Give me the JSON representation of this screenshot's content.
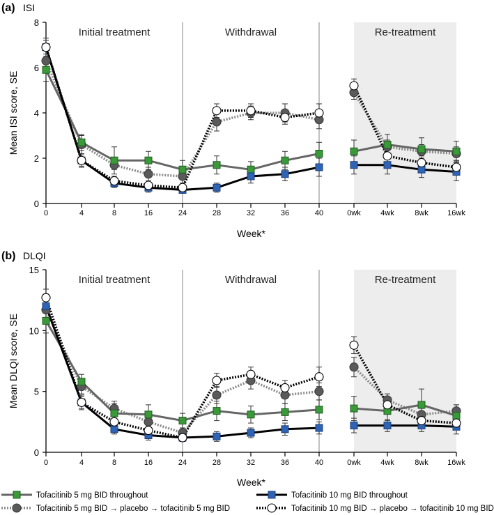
{
  "legend": [
    {
      "label": "Tofacitinib 5 mg BID throughout",
      "style": "s5"
    },
    {
      "label": "Tofacitinib 5 mg BID → placebo → tofacitinib 5 mg BID",
      "style": "p5"
    },
    {
      "label": "Tofacitinib 10 mg BID throughout",
      "style": "s10"
    },
    {
      "label": "Tofacitinib 10 mg BID → placebo → tofacitinib 10 mg BID",
      "style": "p10"
    }
  ],
  "colors": {
    "s5": "#3a9a3a",
    "s5_line": "#666666",
    "p5": "#5a5a5a",
    "p5_line": "#8a8a8a",
    "s10": "#2f63b5",
    "s10_line": "#000000",
    "p10_fill": "#ffffff",
    "p10_line": "#000000",
    "shade": "#ededed",
    "divider": "#9a9a9a",
    "errbar": "#333333"
  },
  "chart_data": [
    {
      "type": "line",
      "panel": "(a)",
      "title": "ISI",
      "ylabel": "Mean ISI score, SE",
      "xlabel": "Week*",
      "ylim": [
        0,
        8
      ],
      "yticks": [
        0,
        2,
        4,
        6,
        8
      ],
      "phases": [
        "Initial treatment",
        "Withdrawal",
        "Re-treatment"
      ],
      "xtick_labels": [
        "0",
        "4",
        "8",
        "16",
        "24",
        "28",
        "32",
        "36",
        "40",
        "0wk",
        "4wk",
        "8wk",
        "16wk"
      ],
      "series": [
        {
          "name": "Tofacitinib 5 mg BID throughout",
          "style": "s5",
          "values": [
            5.9,
            2.7,
            1.9,
            1.9,
            1.5,
            1.7,
            1.5,
            1.9,
            2.2,
            2.3,
            2.6,
            2.4,
            2.3
          ],
          "se": [
            0.5,
            0.35,
            0.6,
            0.4,
            0.4,
            0.4,
            0.35,
            0.4,
            0.5,
            0.5,
            0.45,
            0.5,
            0.45
          ]
        },
        {
          "name": "Tofacitinib 5 mg BID → placebo → tofacitinib 5 mg BID",
          "style": "p5",
          "values": [
            6.3,
            2.6,
            1.7,
            1.3,
            1.2,
            3.6,
            4.0,
            4.0,
            3.7,
            4.9,
            2.5,
            2.3,
            2.2
          ],
          "se": [
            0.5,
            0.4,
            0.2,
            0.3,
            0.3,
            0.4,
            0.3,
            0.4,
            0.4,
            0.3,
            0.3,
            0.3,
            0.3
          ]
        },
        {
          "name": "Tofacitinib 10 mg BID throughout",
          "style": "s10",
          "values": [
            6.9,
            1.9,
            0.9,
            0.7,
            0.6,
            0.7,
            1.2,
            1.3,
            1.6,
            1.7,
            1.7,
            1.5,
            1.4
          ],
          "se": [
            0.4,
            0.25,
            0.2,
            0.2,
            0.15,
            0.2,
            0.3,
            0.3,
            0.4,
            0.4,
            0.4,
            0.35,
            0.4
          ]
        },
        {
          "name": "Tofacitinib 10 mg BID → placebo → tofacitinib 10 mg BID",
          "style": "p10",
          "values": [
            6.9,
            1.9,
            1.0,
            0.8,
            0.7,
            4.1,
            4.1,
            3.8,
            4.0,
            5.2,
            2.1,
            1.8,
            1.6
          ],
          "se": [
            0.3,
            0.3,
            0.2,
            0.2,
            0.2,
            0.3,
            0.3,
            0.3,
            0.4,
            0.3,
            0.3,
            0.3,
            0.3
          ]
        }
      ]
    },
    {
      "type": "line",
      "panel": "(b)",
      "title": "DLQI",
      "ylabel": "Mean DLQI score, SE",
      "xlabel": "Week*",
      "ylim": [
        0,
        15
      ],
      "yticks": [
        0,
        5,
        10,
        15
      ],
      "phases": [
        "Initial treatment",
        "Withdrawal",
        "Re-treatment"
      ],
      "xtick_labels": [
        "0",
        "4",
        "8",
        "16",
        "24",
        "28",
        "32",
        "36",
        "40",
        "0wk",
        "4wk",
        "8wk",
        "16wk"
      ],
      "series": [
        {
          "name": "Tofacitinib 5 mg BID throughout",
          "style": "s5",
          "values": [
            10.8,
            5.8,
            3.2,
            3.1,
            2.6,
            3.4,
            3.1,
            3.3,
            3.5,
            3.6,
            3.4,
            3.9,
            3.0
          ],
          "se": [
            1.0,
            0.6,
            0.8,
            0.8,
            0.6,
            0.8,
            0.7,
            0.7,
            0.8,
            1.0,
            0.8,
            1.3,
            0.9
          ]
        },
        {
          "name": "Tofacitinib 5 mg BID → placebo → tofacitinib 5 mg BID",
          "style": "p5",
          "values": [
            11.7,
            5.4,
            3.6,
            2.5,
            1.6,
            4.7,
            5.9,
            4.7,
            5.0,
            7.0,
            4.3,
            3.1,
            3.4
          ],
          "se": [
            1.0,
            0.6,
            0.6,
            0.5,
            0.4,
            0.7,
            0.7,
            0.7,
            0.7,
            0.8,
            0.5,
            0.5,
            0.5
          ]
        },
        {
          "name": "Tofacitinib 10 mg BID throughout",
          "style": "s10",
          "values": [
            12.0,
            4.1,
            1.9,
            1.4,
            1.2,
            1.3,
            1.6,
            1.9,
            2.0,
            2.2,
            2.2,
            2.2,
            2.1
          ],
          "se": [
            1.0,
            0.5,
            0.4,
            0.4,
            0.3,
            0.4,
            0.4,
            0.5,
            0.5,
            0.6,
            0.5,
            0.5,
            0.6
          ]
        },
        {
          "name": "Tofacitinib 10 mg BID → placebo → tofacitinib 10 mg BID",
          "style": "p10",
          "values": [
            12.7,
            4.1,
            2.5,
            1.8,
            1.2,
            5.9,
            6.4,
            5.3,
            6.2,
            8.8,
            3.9,
            2.6,
            2.4
          ],
          "se": [
            0.7,
            0.6,
            0.5,
            0.4,
            0.3,
            0.6,
            0.6,
            0.6,
            0.8,
            0.7,
            0.5,
            0.5,
            0.5
          ]
        }
      ]
    }
  ]
}
